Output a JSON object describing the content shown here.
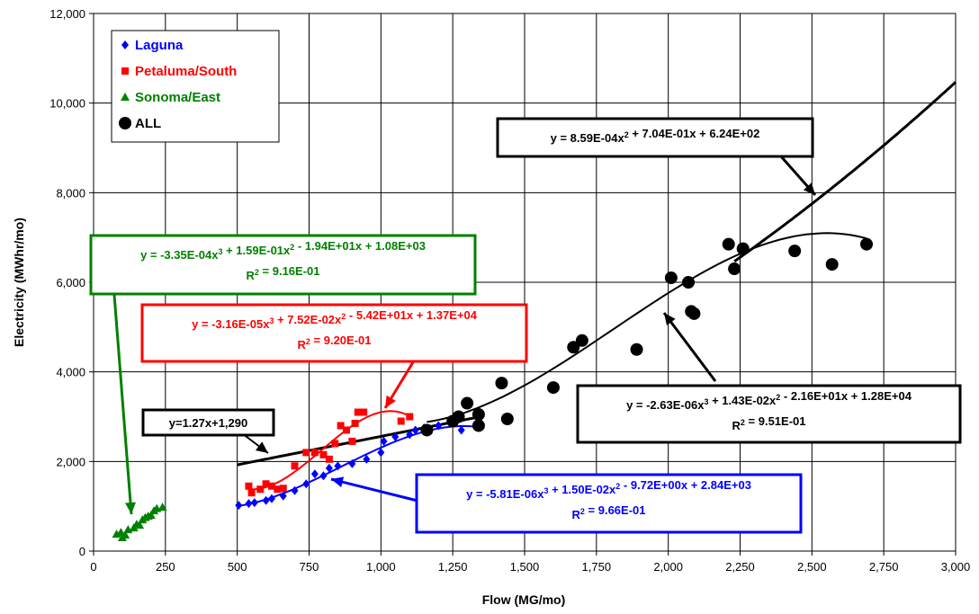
{
  "chart_data": {
    "type": "scatter",
    "xlabel": "Flow (MG/mo)",
    "ylabel": "Electricity (MWhr/mo)",
    "xlim": [
      0,
      3000
    ],
    "ylim": [
      0,
      12000
    ],
    "x_ticks": [
      0,
      250,
      500,
      750,
      1000,
      1250,
      1500,
      1750,
      2000,
      2250,
      2500,
      2750,
      3000
    ],
    "y_ticks": [
      0,
      2000,
      4000,
      6000,
      8000,
      10000,
      12000
    ],
    "x_tick_labels": [
      "0",
      "250",
      "500",
      "750",
      "1,000",
      "1,250",
      "1,500",
      "1,750",
      "2,000",
      "2,250",
      "2,500",
      "2,750",
      "3,000"
    ],
    "y_tick_labels": [
      "0",
      "2,000",
      "4,000",
      "6,000",
      "8,000",
      "10,000",
      "12,000"
    ],
    "grid": true,
    "legend_position": "top-left",
    "colors": {
      "laguna": "#0000ff",
      "petaluma": "#ff0000",
      "sonoma": "#008000",
      "all": "#000000"
    },
    "series": [
      {
        "name": "Laguna",
        "marker": "diamond",
        "color": "#0000ff",
        "points": [
          [
            505,
            1020
          ],
          [
            540,
            1060
          ],
          [
            560,
            1080
          ],
          [
            600,
            1130
          ],
          [
            620,
            1170
          ],
          [
            660,
            1230
          ],
          [
            700,
            1350
          ],
          [
            740,
            1500
          ],
          [
            770,
            1720
          ],
          [
            800,
            1680
          ],
          [
            820,
            1850
          ],
          [
            850,
            1900
          ],
          [
            900,
            1950
          ],
          [
            950,
            2050
          ],
          [
            1000,
            2200
          ],
          [
            1010,
            2450
          ],
          [
            1050,
            2550
          ],
          [
            1100,
            2600
          ],
          [
            1120,
            2700
          ],
          [
            1150,
            2750
          ],
          [
            1200,
            2800
          ],
          [
            1280,
            2700
          ]
        ]
      },
      {
        "name": "Petaluma/South",
        "marker": "square",
        "color": "#ff0000",
        "points": [
          [
            540,
            1450
          ],
          [
            550,
            1300
          ],
          [
            580,
            1380
          ],
          [
            600,
            1500
          ],
          [
            620,
            1450
          ],
          [
            640,
            1380
          ],
          [
            660,
            1400
          ],
          [
            700,
            1900
          ],
          [
            740,
            2200
          ],
          [
            770,
            2200
          ],
          [
            800,
            2150
          ],
          [
            820,
            2050
          ],
          [
            840,
            2400
          ],
          [
            860,
            2800
          ],
          [
            880,
            2700
          ],
          [
            900,
            2450
          ],
          [
            910,
            2850
          ],
          [
            920,
            3100
          ],
          [
            940,
            3100
          ],
          [
            1070,
            2900
          ],
          [
            1100,
            3000
          ]
        ]
      },
      {
        "name": "Sonoma/East",
        "marker": "triangle",
        "color": "#008000",
        "points": [
          [
            80,
            380
          ],
          [
            95,
            420
          ],
          [
            100,
            300
          ],
          [
            110,
            360
          ],
          [
            120,
            480
          ],
          [
            140,
            520
          ],
          [
            150,
            600
          ],
          [
            160,
            580
          ],
          [
            170,
            700
          ],
          [
            180,
            750
          ],
          [
            190,
            780
          ],
          [
            200,
            800
          ],
          [
            210,
            900
          ],
          [
            220,
            950
          ],
          [
            240,
            980
          ]
        ]
      },
      {
        "name": "ALL",
        "marker": "circle",
        "color": "#000000",
        "points": [
          [
            1160,
            2700
          ],
          [
            1250,
            2900
          ],
          [
            1270,
            3000
          ],
          [
            1300,
            3300
          ],
          [
            1340,
            3050
          ],
          [
            1340,
            2800
          ],
          [
            1420,
            3750
          ],
          [
            1440,
            2950
          ],
          [
            1600,
            3650
          ],
          [
            1670,
            4550
          ],
          [
            1700,
            4700
          ],
          [
            1890,
            4500
          ],
          [
            2010,
            6100
          ],
          [
            2070,
            6000
          ],
          [
            2080,
            5350
          ],
          [
            2090,
            5300
          ],
          [
            2210,
            6850
          ],
          [
            2230,
            6300
          ],
          [
            2260,
            6750
          ],
          [
            2440,
            6700
          ],
          [
            2570,
            6400
          ],
          [
            2690,
            6850
          ]
        ]
      }
    ],
    "trendlines": [
      {
        "series": "ALL",
        "kind": "linear",
        "coeffs": [
          1.27,
          1290
        ],
        "x_range": [
          500,
          1360
        ]
      },
      {
        "series": "ALL",
        "kind": "poly2",
        "coeffs": [
          0.000859,
          0.704,
          624
        ],
        "x_range": [
          2230,
          3000
        ]
      },
      {
        "series": "ALL",
        "kind": "poly3",
        "coeffs": [
          -2.63e-06,
          0.0143,
          -21.6,
          12800
        ],
        "x_range": [
          1160,
          2690
        ]
      },
      {
        "series": "Petaluma/South",
        "kind": "poly3",
        "coeffs": [
          -3.16e-05,
          0.0752,
          -54.2,
          13700
        ],
        "x_range": [
          550,
          1100
        ]
      },
      {
        "series": "Laguna",
        "kind": "poly3",
        "coeffs": [
          -5.81e-06,
          0.015,
          -9.72,
          2840
        ],
        "x_range": [
          505,
          1360
        ]
      }
    ],
    "annotations": [
      {
        "id": "all-quadratic",
        "line1": "y = 8.59E-04x² + 7.04E-01x + 6.24E+02",
        "line2": "",
        "color": "#000000"
      },
      {
        "id": "sonoma",
        "line1": "y = -3.35E-04x³ + 1.59E-01x² - 1.94E+01x + 1.08E+03",
        "line2": "R² = 9.16E-01",
        "color": "#008000"
      },
      {
        "id": "petaluma",
        "line1": "y = -3.16E-05x³ + 7.52E-02x² - 5.42E+01x + 1.37E+04",
        "line2": "R² = 9.20E-01",
        "color": "#ff0000"
      },
      {
        "id": "all-linear",
        "line1": "y=1.27x+1,290",
        "line2": "",
        "color": "#000000"
      },
      {
        "id": "all-cubic",
        "line1": "y = -2.63E-06x³ + 1.43E-02x² - 2.16E+01x + 1.28E+04",
        "line2": "R² = 9.51E-01",
        "color": "#000000"
      },
      {
        "id": "laguna",
        "line1": "y = -5.81E-06x³ + 1.50E-02x² - 9.72E+00x + 2.84E+03",
        "line2": "R² = 9.66E-01",
        "color": "#0000ff"
      }
    ]
  }
}
